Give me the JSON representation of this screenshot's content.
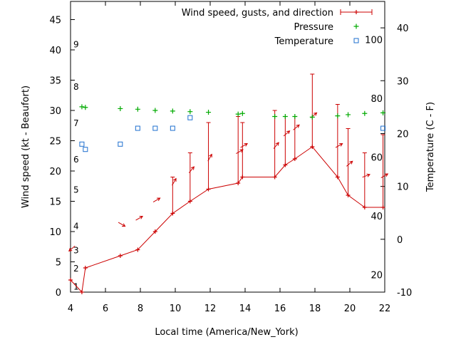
{
  "chart_data": {
    "type": "line",
    "xlabel": "Local time (America/New_York)",
    "ylabel_left": "Wind speed (kt - Beaufort)",
    "ylabel_right": "Temperature (C - F)",
    "xlim": [
      4,
      22
    ],
    "ylim_left": [
      0,
      48
    ],
    "ylim_right": [
      -10,
      45
    ],
    "x_ticks": [
      4,
      6,
      8,
      10,
      12,
      14,
      16,
      18,
      20,
      22
    ],
    "y_ticks_left": [
      0,
      5,
      10,
      15,
      20,
      25,
      30,
      35,
      40,
      45
    ],
    "y_ticks_right": [
      -10,
      0,
      10,
      20,
      30,
      40
    ],
    "beaufort_labels": [
      {
        "label": "1",
        "y": 1.0
      },
      {
        "label": "2",
        "y": 4.0
      },
      {
        "label": "3",
        "y": 7.0
      },
      {
        "label": "4",
        "y": 11.0
      },
      {
        "label": "5",
        "y": 17.0
      },
      {
        "label": "6",
        "y": 22.0
      },
      {
        "label": "7",
        "y": 28.0
      },
      {
        "label": "8",
        "y": 34.0
      },
      {
        "label": "9",
        "y": 41.0
      }
    ],
    "fahrenheit_labels": [
      {
        "label": "20",
        "c": -6.67
      },
      {
        "label": "40",
        "c": 4.44
      },
      {
        "label": "60",
        "c": 15.56
      },
      {
        "label": "80",
        "c": 26.67
      },
      {
        "label": "100",
        "c": 37.78
      }
    ],
    "series": [
      {
        "name": "Wind speed, gusts, and direction",
        "color": "#cc0000",
        "points": [
          {
            "x": 4.0,
            "y": 2,
            "gust": null,
            "dir": 50
          },
          {
            "x": 4.65,
            "y": 0,
            "gust": null,
            "dir": null
          },
          {
            "x": 4.85,
            "y": 4,
            "gust": null,
            "dir": null
          },
          {
            "x": 6.85,
            "y": 6,
            "gust": null,
            "dir": 300
          },
          {
            "x": 7.85,
            "y": 7,
            "gust": null,
            "dir": 240
          },
          {
            "x": 8.85,
            "y": 10,
            "gust": null,
            "dir": 240
          },
          {
            "x": 9.85,
            "y": 13,
            "gust": 19,
            "dir": 210
          },
          {
            "x": 10.85,
            "y": 15,
            "gust": 23,
            "dir": 220
          },
          {
            "x": 11.9,
            "y": 17,
            "gust": 28,
            "dir": 210
          },
          {
            "x": 13.6,
            "y": 18,
            "gust": 29,
            "dir": 240
          },
          {
            "x": 13.85,
            "y": 19,
            "gust": 28,
            "dir": 240
          },
          {
            "x": 15.7,
            "y": 19,
            "gust": 30,
            "dir": 220
          },
          {
            "x": 16.3,
            "y": 21,
            "gust": 29,
            "dir": 230
          },
          {
            "x": 16.85,
            "y": 22,
            "gust": 29,
            "dir": 230
          },
          {
            "x": 17.85,
            "y": 24,
            "gust": 36,
            "dir": 230
          },
          {
            "x": 19.3,
            "y": 19,
            "gust": 31,
            "dir": 240
          },
          {
            "x": 19.9,
            "y": 16,
            "gust": 27,
            "dir": 230
          },
          {
            "x": 20.85,
            "y": 14,
            "gust": 23,
            "dir": 250
          },
          {
            "x": 21.9,
            "y": 14,
            "gust": 26,
            "dir": 240
          }
        ]
      },
      {
        "name": "Pressure",
        "color": "#00aa00",
        "points": [
          {
            "x": 4.65,
            "y": 30.6
          },
          {
            "x": 4.85,
            "y": 30.5
          },
          {
            "x": 6.85,
            "y": 30.3
          },
          {
            "x": 7.85,
            "y": 30.2
          },
          {
            "x": 8.85,
            "y": 30.0
          },
          {
            "x": 9.85,
            "y": 29.9
          },
          {
            "x": 10.85,
            "y": 29.8
          },
          {
            "x": 11.9,
            "y": 29.7
          },
          {
            "x": 13.6,
            "y": 29.4
          },
          {
            "x": 13.85,
            "y": 29.5
          },
          {
            "x": 15.7,
            "y": 29.0
          },
          {
            "x": 16.3,
            "y": 29.0
          },
          {
            "x": 16.85,
            "y": 29.0
          },
          {
            "x": 17.85,
            "y": 28.9
          },
          {
            "x": 19.3,
            "y": 29.1
          },
          {
            "x": 19.9,
            "y": 29.3
          },
          {
            "x": 20.85,
            "y": 29.5
          },
          {
            "x": 21.9,
            "y": 29.6
          }
        ]
      },
      {
        "name": "Temperature",
        "color": "#1e6fcf",
        "points": [
          {
            "x": 4.65,
            "y": 18.0
          },
          {
            "x": 4.85,
            "y": 17.0
          },
          {
            "x": 6.85,
            "y": 18.0
          },
          {
            "x": 7.85,
            "y": 21.0
          },
          {
            "x": 8.85,
            "y": 21.0
          },
          {
            "x": 9.85,
            "y": 21.0
          },
          {
            "x": 10.85,
            "y": 23.0
          },
          {
            "x": 21.9,
            "y": 21.0
          }
        ]
      }
    ],
    "legend_position": "top-right",
    "grid": false
  }
}
